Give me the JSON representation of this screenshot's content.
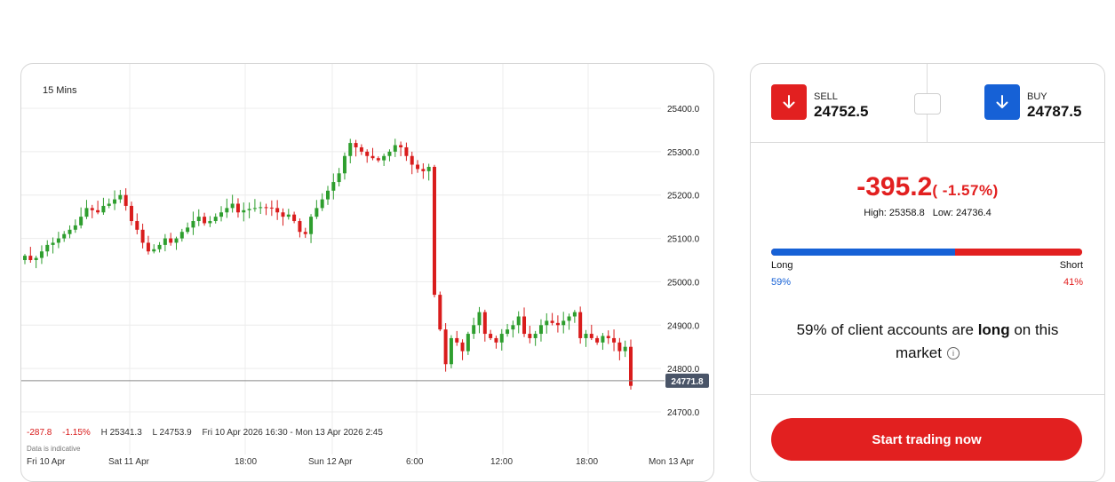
{
  "chart": {
    "interval": "15 Mins",
    "y_ticks": [
      "25400.0",
      "25300.0",
      "25200.0",
      "25100.0",
      "25000.0",
      "24900.0",
      "24800.0",
      "24700.0"
    ],
    "current_price_tag": "24771.8",
    "stats": {
      "change_points": "-287.8",
      "change_percent": "-1.15%",
      "high": "H 25341.3",
      "low": "L 24753.9",
      "range": "Fri 10 Apr 2026 16:30 - Mon 13 Apr 2026 2:45"
    },
    "indicative_note": "Data is indicative",
    "x_ticks": [
      "Fri 10 Apr",
      "Sat 11 Apr",
      "18:00",
      "Sun 12 Apr",
      "6:00",
      "12:00",
      "18:00",
      "Mon 13 Apr"
    ],
    "colors": {
      "up": "#2e9e2e",
      "down": "#d91c1c",
      "tag_bg": "#4a5568"
    }
  },
  "chart_data": {
    "type": "candlestick",
    "ylim": [
      24650,
      25450
    ],
    "current_price": 24771.8,
    "closes": [
      25060,
      25050,
      25055,
      25070,
      25085,
      25090,
      25100,
      25110,
      25120,
      25130,
      25150,
      25170,
      25165,
      25160,
      25175,
      25180,
      25190,
      25200,
      25175,
      25140,
      25120,
      25090,
      25070,
      25075,
      25085,
      25100,
      25090,
      25100,
      25115,
      25125,
      25140,
      25150,
      25135,
      25140,
      25150,
      25160,
      25170,
      25180,
      25160,
      25165,
      25168,
      25170,
      25172,
      25171,
      25170,
      25160,
      25150,
      25155,
      25140,
      25115,
      25110,
      25150,
      25170,
      25190,
      25210,
      25230,
      25250,
      25290,
      25320,
      25310,
      25300,
      25290,
      25285,
      25280,
      25290,
      25300,
      25315,
      25310,
      25290,
      25270,
      25260,
      25255,
      25265,
      24970,
      24890,
      24810,
      24870,
      24860,
      24840,
      24880,
      24900,
      24930,
      24880,
      24870,
      24860,
      24880,
      24890,
      24900,
      24920,
      24880,
      24870,
      24880,
      24900,
      24910,
      24905,
      24900,
      24910,
      24920,
      24930,
      24870,
      24880,
      24870,
      24860,
      24875,
      24870,
      24860,
      24840,
      24850,
      24760
    ]
  },
  "trade": {
    "sell": {
      "label": "SELL",
      "price": "24752.5"
    },
    "buy": {
      "label": "BUY",
      "price": "24787.5"
    },
    "change_points": "-395.2",
    "change_percent": "( -1.57%)",
    "high": "High: 25358.8",
    "low": "Low: 24736.4",
    "sentiment": {
      "long_percent": 59,
      "long_label": "Long",
      "short_label": "Short",
      "long_pct_text": "59%",
      "short_pct_text": "41%",
      "text_pre": "59% of client accounts are ",
      "text_bold": "long",
      "text_post": " on this market"
    },
    "cta": "Start trading now",
    "colors": {
      "sell": "#e22020",
      "buy": "#1661d6"
    }
  }
}
